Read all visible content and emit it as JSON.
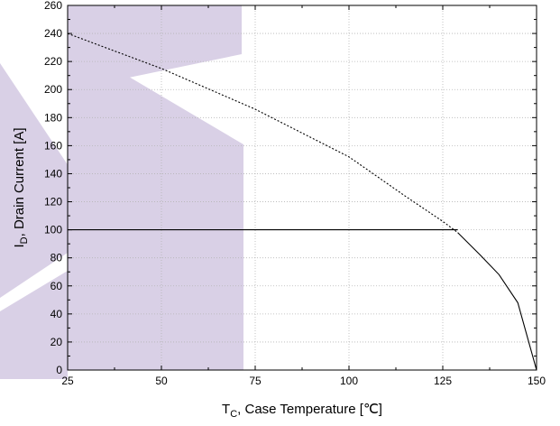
{
  "chart_data": {
    "type": "line",
    "xlabel": {
      "main": "T",
      "sub": "C",
      "rest": ", Case Temperature [℃]"
    },
    "ylabel": {
      "main": "I",
      "sub": "D",
      "rest": ", Drain Current [A]"
    },
    "xlim": [
      25,
      150
    ],
    "ylim": [
      0,
      260
    ],
    "x_ticks": [
      25,
      50,
      75,
      100,
      125,
      150
    ],
    "y_ticks": [
      0,
      20,
      40,
      60,
      80,
      100,
      120,
      140,
      160,
      180,
      200,
      220,
      240,
      260
    ],
    "grid": true,
    "legend": "none",
    "series": [
      {
        "style": "dotted",
        "color": "#000000",
        "x": [
          25,
          50,
          75,
          100,
          115,
          125,
          129
        ],
        "y": [
          240,
          215,
          186,
          152,
          124,
          106,
          98
        ]
      },
      {
        "style": "solid",
        "color": "#000000",
        "x": [
          25,
          129
        ],
        "y": [
          100,
          100
        ]
      },
      {
        "style": "solid",
        "color": "#000000",
        "x": [
          129,
          135,
          140,
          145,
          150
        ],
        "y": [
          98,
          82,
          68,
          48,
          0
        ]
      }
    ]
  },
  "watermark": {
    "color": "#d9d0e6"
  }
}
